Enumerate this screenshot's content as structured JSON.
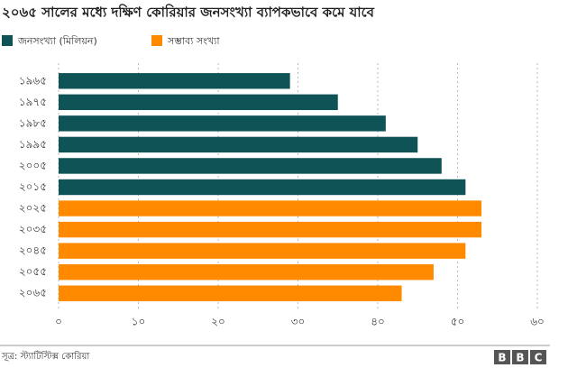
{
  "chart_data": {
    "type": "bar",
    "orientation": "horizontal",
    "title": "২০৬৫ সালের মধ্যে দক্ষিণ কোরিয়ার জনসংখ্যা ব্যাপকভাবে কমে যাবে",
    "categories": [
      "১৯৬৫",
      "১৯৭৫",
      "১৯৮৫",
      "১৯৯৫",
      "২০০৫",
      "২০১৫",
      "২০২৫",
      "২০৩৫",
      "২০৪৫",
      "২০৫৫",
      "২০৬৫"
    ],
    "series": [
      {
        "name": "জনসংখ্যা (মিলিয়ন)",
        "color": "#0f5357",
        "values": [
          29,
          35,
          41,
          45,
          48,
          51,
          null,
          null,
          null,
          null,
          null
        ]
      },
      {
        "name": "সম্ভাব্য সংখ্যা",
        "color": "#ff8a00",
        "values": [
          null,
          null,
          null,
          null,
          null,
          null,
          53,
          53,
          51,
          47,
          43
        ]
      }
    ],
    "xlim": [
      0,
      60
    ],
    "xticks": [
      {
        "value": 0,
        "label": "০"
      },
      {
        "value": 10,
        "label": "১০"
      },
      {
        "value": 20,
        "label": "২০"
      },
      {
        "value": 30,
        "label": "৩০"
      },
      {
        "value": 40,
        "label": "৪০"
      },
      {
        "value": 50,
        "label": "৫০"
      },
      {
        "value": 60,
        "label": "৬০"
      }
    ],
    "grid": true,
    "source": "সূত্র: স্ট্যাটিস্টিক্স কোরিয়া",
    "logo": [
      "B",
      "B",
      "C"
    ]
  }
}
